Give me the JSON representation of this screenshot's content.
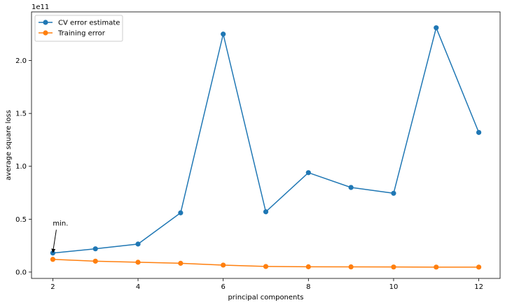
{
  "chart_data": {
    "type": "line",
    "x": [
      2,
      3,
      4,
      5,
      6,
      7,
      8,
      9,
      10,
      11,
      12
    ],
    "series": [
      {
        "name": "CV error estimate",
        "color": "#1f77b4",
        "values": [
          18000000000.0,
          22000000000.0,
          26500000000.0,
          56000000000.0,
          225000000000.0,
          57000000000.0,
          94000000000.0,
          80000000000.0,
          74500000000.0,
          231000000000.0,
          132000000000.0
        ]
      },
      {
        "name": "Training error",
        "color": "#ff7f0e",
        "values": [
          12000000000.0,
          10300000000.0,
          9300000000.0,
          8300000000.0,
          6600000000.0,
          5300000000.0,
          5000000000.0,
          4900000000.0,
          4800000000.0,
          4700000000.0,
          4700000000.0
        ]
      }
    ],
    "xlabel": "principal components",
    "ylabel": "average square loss",
    "y_offset_label": "1e11",
    "xlim": [
      1.5,
      12.5
    ],
    "ylim": [
      -6000000000.0,
      246000000000.0
    ],
    "xticks": [
      2,
      4,
      6,
      8,
      10,
      12
    ],
    "xtick_labels": [
      "2",
      "4",
      "6",
      "8",
      "10",
      "12"
    ],
    "yticks": [
      0,
      50000000000.0,
      100000000000.0,
      150000000000.0,
      200000000000.0
    ],
    "ytick_labels": [
      "0.0",
      "0.5",
      "1.0",
      "1.5",
      "2.0"
    ],
    "grid": false,
    "legend_position": "top-left",
    "annotation": {
      "text": "min.",
      "point_x": 2,
      "point_y": 18000000000.0,
      "text_x": 2,
      "text_y": 44000000000.0
    }
  }
}
